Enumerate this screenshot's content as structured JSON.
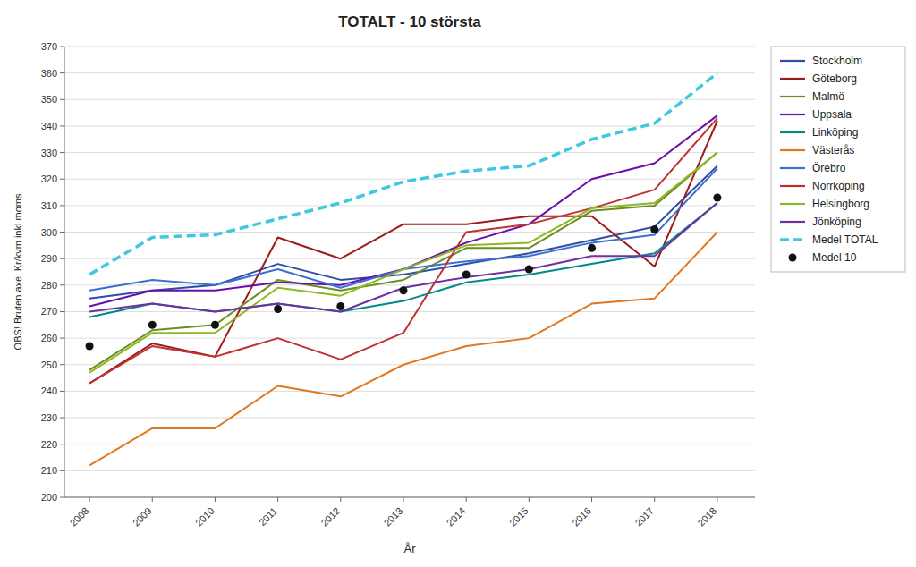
{
  "chart_data": {
    "type": "line",
    "title": "TOTALT - 10 största",
    "xlabel": "År",
    "ylabel": "OBS! Bruten axel Kr/kvm inkl moms",
    "x": [
      2008,
      2009,
      2010,
      2011,
      2012,
      2013,
      2014,
      2015,
      2016,
      2017,
      2018
    ],
    "xlim": [
      2007.6,
      2018.6
    ],
    "xticks": [
      2008,
      2009,
      2010,
      2011,
      2012,
      2013,
      2014,
      2015,
      2016,
      2017,
      2018
    ],
    "ylim": [
      200,
      370
    ],
    "yticks": [
      200,
      210,
      220,
      230,
      240,
      250,
      260,
      270,
      280,
      290,
      300,
      310,
      320,
      330,
      340,
      350,
      360,
      370
    ],
    "grid": "y",
    "legend": "right",
    "series": [
      {
        "name": "Stockholm",
        "color": "#2E4EA6",
        "values": [
          275,
          278,
          280,
          288,
          282,
          284,
          288,
          292,
          297,
          302,
          325
        ]
      },
      {
        "name": "Göteborg",
        "color": "#9B1B1B",
        "values": [
          243,
          258,
          253,
          298,
          290,
          303,
          303,
          306,
          306,
          287,
          342
        ]
      },
      {
        "name": "Malmö",
        "color": "#6B8E23",
        "values": [
          248,
          263,
          265,
          282,
          278,
          282,
          294,
          294,
          308,
          310,
          330
        ]
      },
      {
        "name": "Uppsala",
        "color": "#6A0DAD",
        "values": [
          272,
          278,
          278,
          281,
          280,
          286,
          296,
          303,
          320,
          326,
          344
        ]
      },
      {
        "name": "Linköping",
        "color": "#008B8B",
        "values": [
          268,
          273,
          270,
          273,
          270,
          274,
          281,
          284,
          288,
          292,
          311
        ]
      },
      {
        "name": "Västerås",
        "color": "#E07820",
        "values": [
          212,
          226,
          226,
          242,
          238,
          250,
          257,
          260,
          273,
          275,
          300
        ]
      },
      {
        "name": "Örebro",
        "color": "#3B6FD4",
        "values": [
          278,
          282,
          280,
          286,
          279,
          286,
          289,
          291,
          296,
          299,
          324
        ]
      },
      {
        "name": "Norrköping",
        "color": "#C03030",
        "values": [
          243,
          257,
          253,
          260,
          252,
          262,
          300,
          303,
          309,
          316,
          343
        ]
      },
      {
        "name": "Helsingborg",
        "color": "#8DB820",
        "values": [
          247,
          262,
          262,
          279,
          276,
          286,
          295,
          296,
          309,
          311,
          330
        ]
      },
      {
        "name": "Jönköping",
        "color": "#7030A0",
        "values": [
          270,
          273,
          270,
          273,
          270,
          279,
          283,
          286,
          291,
          291,
          311
        ]
      },
      {
        "name": "Medel TOTAL",
        "color": "#40C8E0",
        "line_style": "dashed",
        "values": [
          284,
          298,
          299,
          305,
          311,
          319,
          323,
          325,
          335,
          341,
          360
        ]
      },
      {
        "name": "Medel 10",
        "color": "#111111",
        "line_style": "none",
        "marker": "circle",
        "values": [
          257,
          265,
          265,
          271,
          272,
          278,
          284,
          286,
          294,
          301,
          313
        ]
      }
    ]
  }
}
